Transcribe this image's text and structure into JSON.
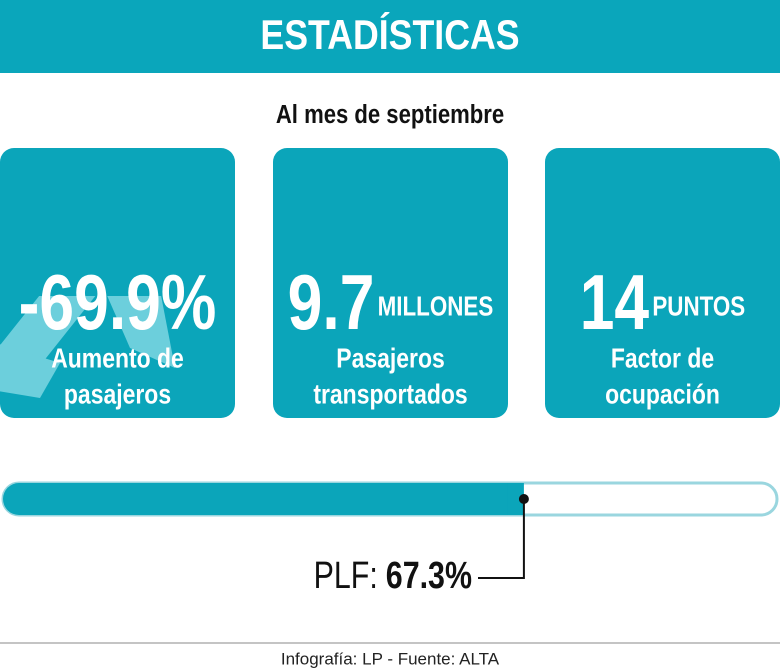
{
  "header": {
    "title": "ESTADÍSTICAS",
    "subtitle": "Al mes de septiembre"
  },
  "cards": [
    {
      "value": "-69.9%",
      "label_lines": [
        "Aumento de",
        "pasajeros"
      ]
    },
    {
      "value": "9.7",
      "unit": "MILLONES",
      "label_lines": [
        "Pasajeros",
        "transportados"
      ]
    },
    {
      "value": "14",
      "unit": "PUNTOS",
      "label_lines": [
        "Factor de",
        "ocupación"
      ]
    }
  ],
  "progress": {
    "label": "PLF:",
    "value": 67.3,
    "value_label": "67.3%",
    "xlim": [
      0,
      100
    ]
  },
  "footer": {
    "source": "Infografía: LP - Fuente: ALTA"
  }
}
